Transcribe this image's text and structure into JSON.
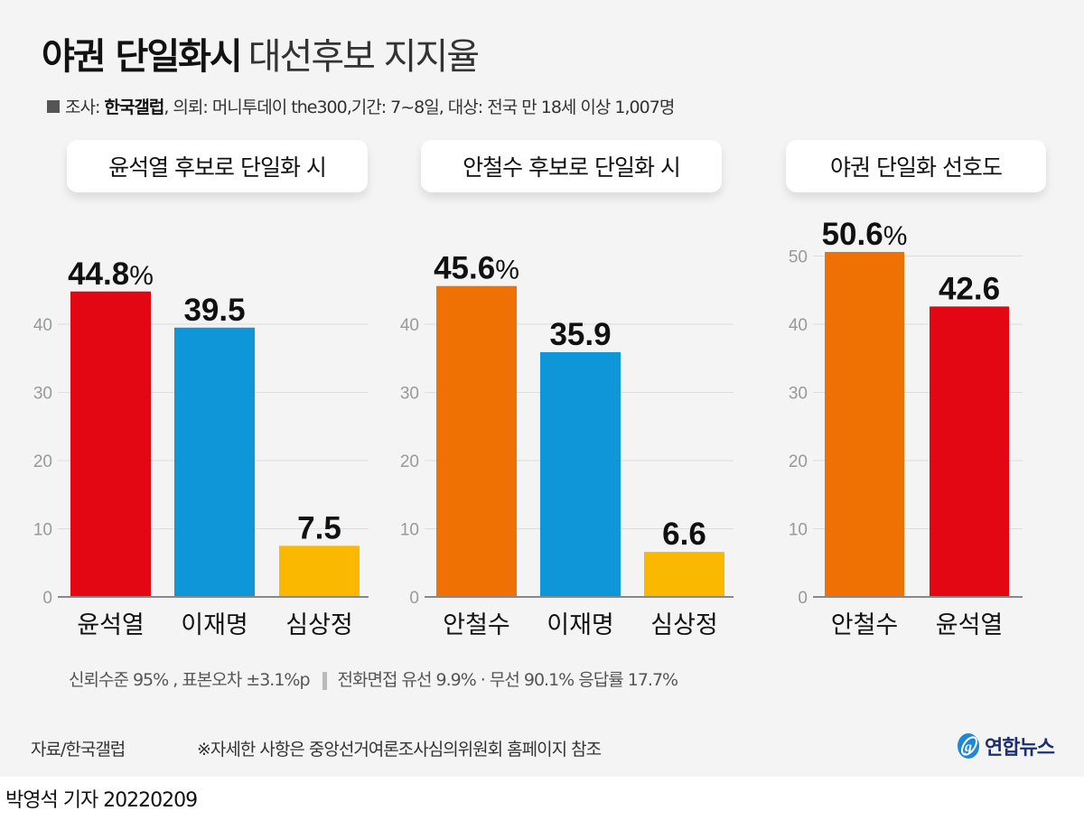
{
  "header": {
    "title_bold": "야권 단일화시",
    "title_light": "대선후보 지지율",
    "survey_label": "조사:",
    "survey_org": "한국갤럽",
    "survey_rest": ", 의뢰: 머니투데이 the300,기간: 7~8일, 대상: 전국 만 18세 이상 1,007명"
  },
  "colors": {
    "yoon": "#e30613",
    "lee": "#0f96d8",
    "sim": "#fbb800",
    "ahn": "#ef7104",
    "grid": "#dddddd",
    "axis": "#888888"
  },
  "chart_data": [
    {
      "type": "bar",
      "title": "윤석열 후보로 단일화 시",
      "categories": [
        "윤석열",
        "이재명",
        "심상정"
      ],
      "values": [
        44.8,
        39.5,
        7.5
      ],
      "value_labels": [
        "44.8",
        "39.5",
        "7.5"
      ],
      "first_label_suffix": "%",
      "bar_colors": [
        "#e30613",
        "#0f96d8",
        "#fbb800"
      ],
      "yticks": [
        0,
        10,
        20,
        30,
        40
      ],
      "ylim": [
        0,
        50
      ],
      "grid": true,
      "xlabel": "",
      "ylabel": ""
    },
    {
      "type": "bar",
      "title": "안철수 후보로 단일화 시",
      "categories": [
        "안철수",
        "이재명",
        "심상정"
      ],
      "values": [
        45.6,
        35.9,
        6.6
      ],
      "value_labels": [
        "45.6",
        "35.9",
        "6.6"
      ],
      "first_label_suffix": "%",
      "bar_colors": [
        "#ef7104",
        "#0f96d8",
        "#fbb800"
      ],
      "yticks": [
        0,
        10,
        20,
        30,
        40
      ],
      "ylim": [
        0,
        50
      ],
      "grid": true,
      "xlabel": "",
      "ylabel": ""
    },
    {
      "type": "bar",
      "title": "야권 단일화 선호도",
      "categories": [
        "안철수",
        "윤석열"
      ],
      "values": [
        50.6,
        42.6
      ],
      "value_labels": [
        "50.6",
        "42.6"
      ],
      "first_label_suffix": "%",
      "bar_colors": [
        "#ef7104",
        "#e30613"
      ],
      "yticks": [
        0,
        10,
        20,
        30,
        40,
        50
      ],
      "ylim": [
        0,
        50
      ],
      "grid": true,
      "xlabel": "",
      "ylabel": ""
    }
  ],
  "notes": {
    "confidence": "신뢰수준 95% , 표본오차 ±3.1%p",
    "method": "전화면접 유선 9.9% · 무선 90.1% 응답률 17.7%"
  },
  "footer": {
    "source": "자료/한국갤럽",
    "disclaimer": "※자세한 사항은 중앙선거여론조사심의위원회 홈페이지 참조",
    "logo_text": "연합뉴스",
    "logo_icon": "yonhap-logo-icon",
    "byline": "박영석 기자  20220209"
  }
}
